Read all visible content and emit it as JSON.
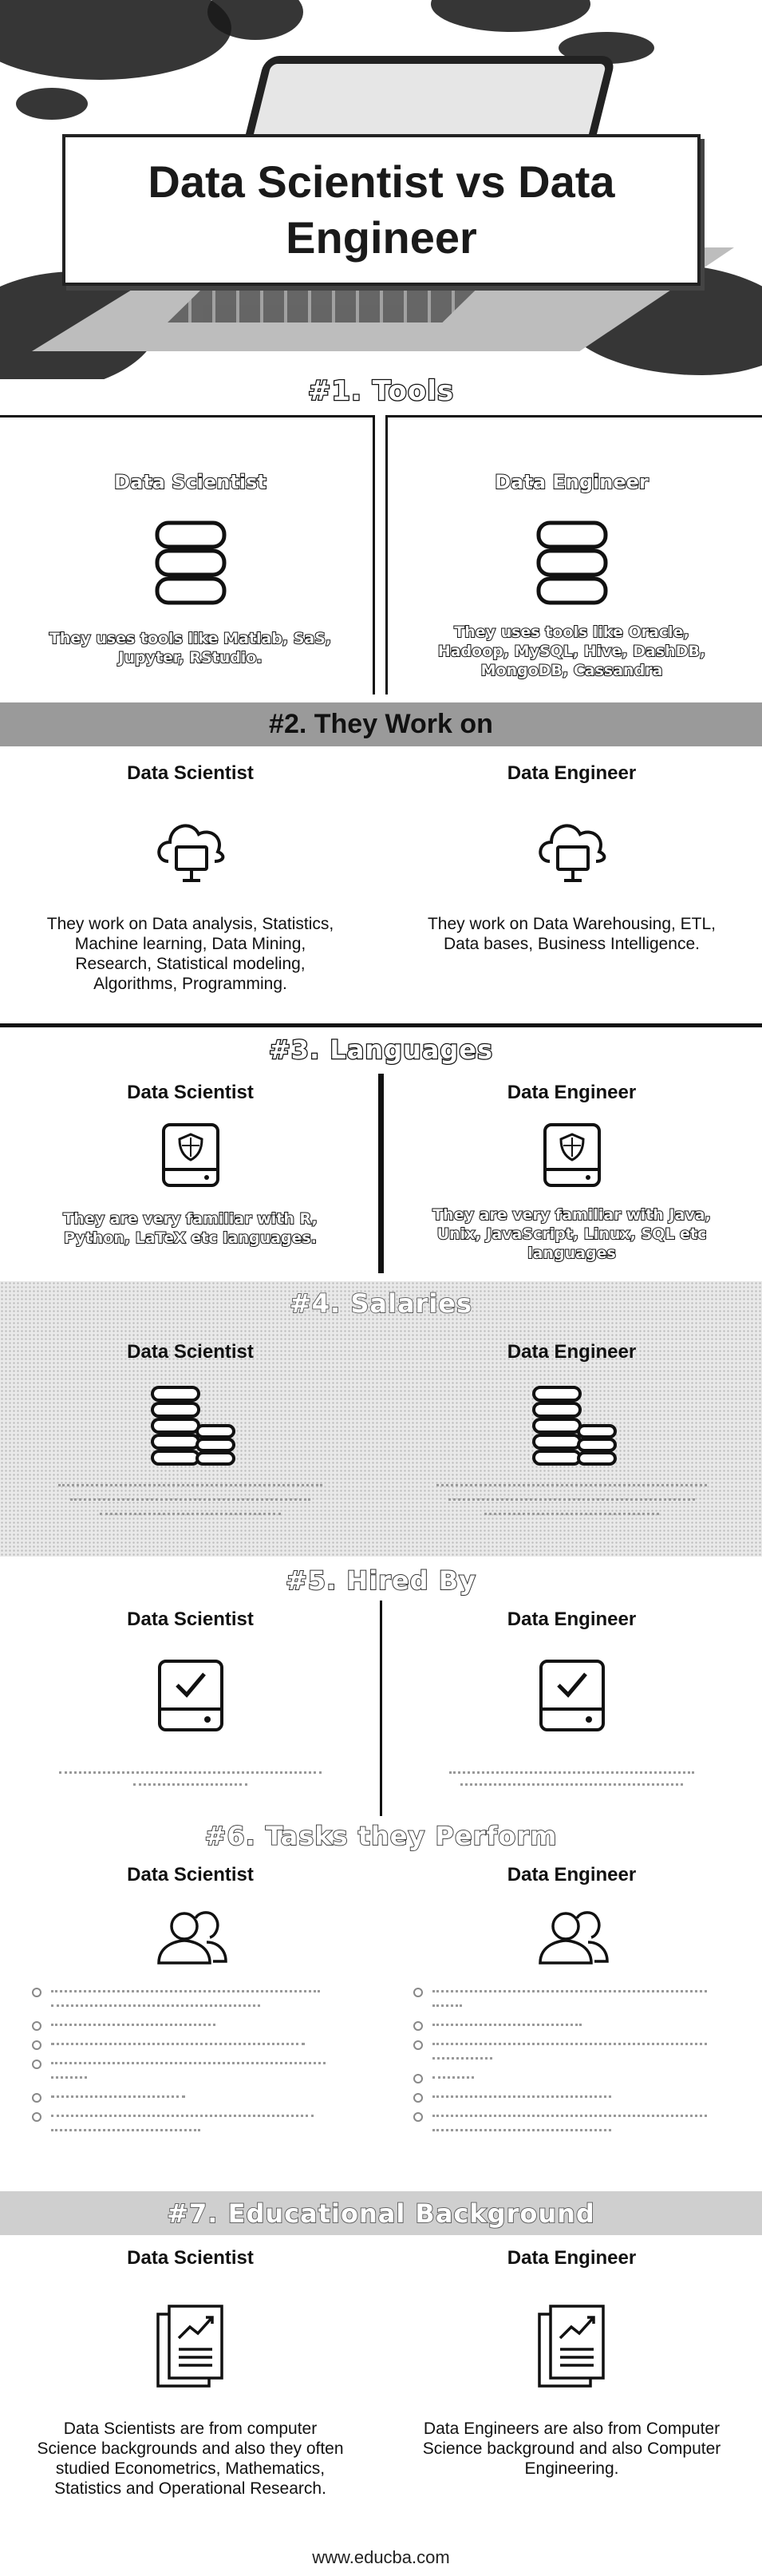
{
  "hero": {
    "title_line1": "Data Scientist vs Data",
    "title_line2": "Engineer"
  },
  "sections": [
    {
      "id": "tools",
      "title": "#1. Tools",
      "left": {
        "heading": "Data Scientist",
        "text": "They uses tools like Matlab, SaS, Jupyter, RStudio.",
        "icon": "database-icon"
      },
      "right": {
        "heading": "Data Engineer",
        "text": "They uses tools like Oracle, Hadoop, MySQL, Hive, DashDB, MongoDB, Cassandra",
        "icon": "database-icon"
      }
    },
    {
      "id": "work",
      "title": "#2. They Work on",
      "left": {
        "heading": "Data Scientist",
        "text": "They work on Data analysis, Statistics, Machine learning, Data Mining, Research, Statistical modeling, Algorithms, Programming.",
        "icon": "cloud-monitor-icon"
      },
      "right": {
        "heading": "Data Engineer",
        "text": "They work on Data Warehousing, ETL, Data bases, Business Intelligence.",
        "icon": "cloud-monitor-icon"
      }
    },
    {
      "id": "languages",
      "title": "#3. Languages",
      "left": {
        "heading": "Data Scientist",
        "text": "They are very familiar with R, Python, LaTeX etc languages.",
        "icon": "shield-drive-icon"
      },
      "right": {
        "heading": "Data Engineer",
        "text": "They are very familiar with Java, Unix, JavaScript, Linux, SQL etc languages",
        "icon": "shield-drive-icon"
      }
    },
    {
      "id": "salaries",
      "title": "#4. Salaries",
      "left": {
        "heading": "Data Scientist",
        "icon": "coins-icon"
      },
      "right": {
        "heading": "Data Engineer",
        "icon": "coins-icon"
      }
    },
    {
      "id": "hired",
      "title": "#5. Hired By",
      "left": {
        "heading": "Data Scientist",
        "icon": "checked-drive-icon"
      },
      "right": {
        "heading": "Data Engineer",
        "icon": "checked-drive-icon"
      }
    },
    {
      "id": "tasks",
      "title": "#6. Tasks they Perform",
      "left": {
        "heading": "Data Scientist",
        "icon": "people-icon"
      },
      "right": {
        "heading": "Data Engineer",
        "icon": "people-icon"
      }
    },
    {
      "id": "education",
      "title": "#7. Educational Background",
      "left": {
        "heading": "Data Scientist",
        "text": "Data Scientists are from computer Science backgrounds and also they often studied Econometrics, Mathematics, Statistics and Operational Research.",
        "icon": "report-chart-icon"
      },
      "right": {
        "heading": "Data Engineer",
        "text": "Data Engineers are also from Computer Science background and also Computer Engineering.",
        "icon": "report-chart-icon"
      }
    }
  ],
  "footer": {
    "url": "www.educba.com"
  },
  "colors": {
    "dark": "#111111",
    "header_gray": "#9a9a9a",
    "light_gray": "#cfcfcf"
  }
}
